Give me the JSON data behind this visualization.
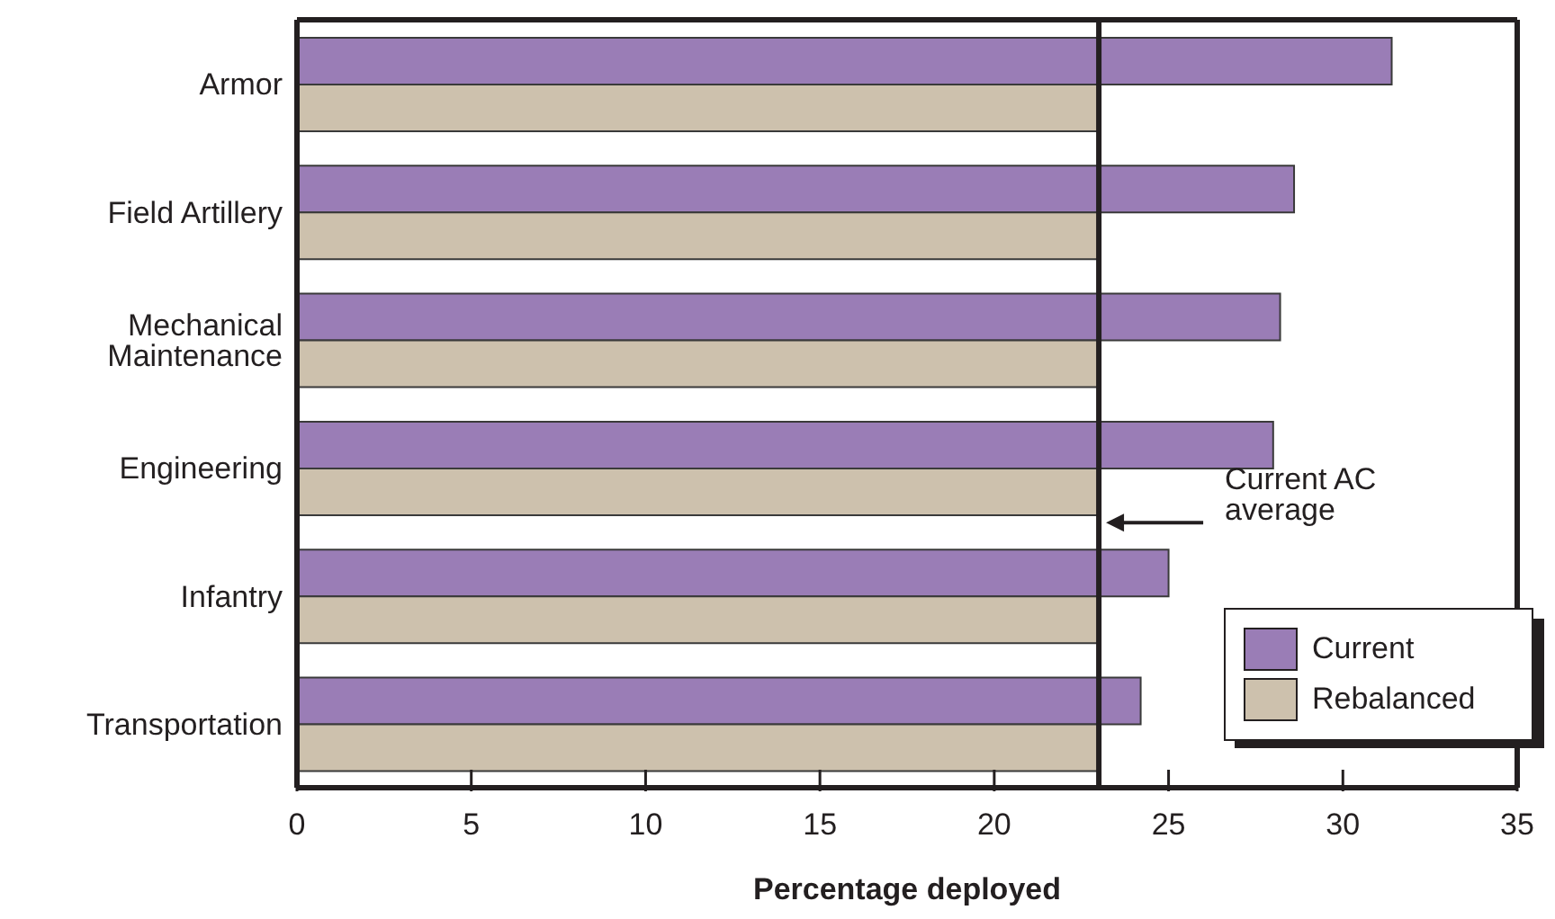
{
  "chart_data": {
    "type": "bar",
    "orientation": "horizontal",
    "xlabel": "Percentage deployed",
    "categories": [
      "Armor",
      "Field Artillery",
      "Mechanical Maintenance",
      "Engineering",
      "Infantry",
      "Transportation"
    ],
    "series": [
      {
        "name": "Current",
        "color": "#9a7db6",
        "values": [
          31.4,
          28.6,
          28.2,
          28.0,
          25.0,
          24.2
        ]
      },
      {
        "name": "Rebalanced",
        "color": "#cdc1ad",
        "values": [
          23,
          23,
          23,
          23,
          23,
          23
        ]
      }
    ],
    "xlim": [
      0,
      35
    ],
    "xticks": [
      0,
      5,
      10,
      15,
      20,
      25,
      30,
      35
    ],
    "ref_lines": [
      {
        "axis": "x",
        "value": 23,
        "label": "Current AC average",
        "color": "#231f20"
      }
    ],
    "grid": false,
    "legend": "bottom right"
  }
}
